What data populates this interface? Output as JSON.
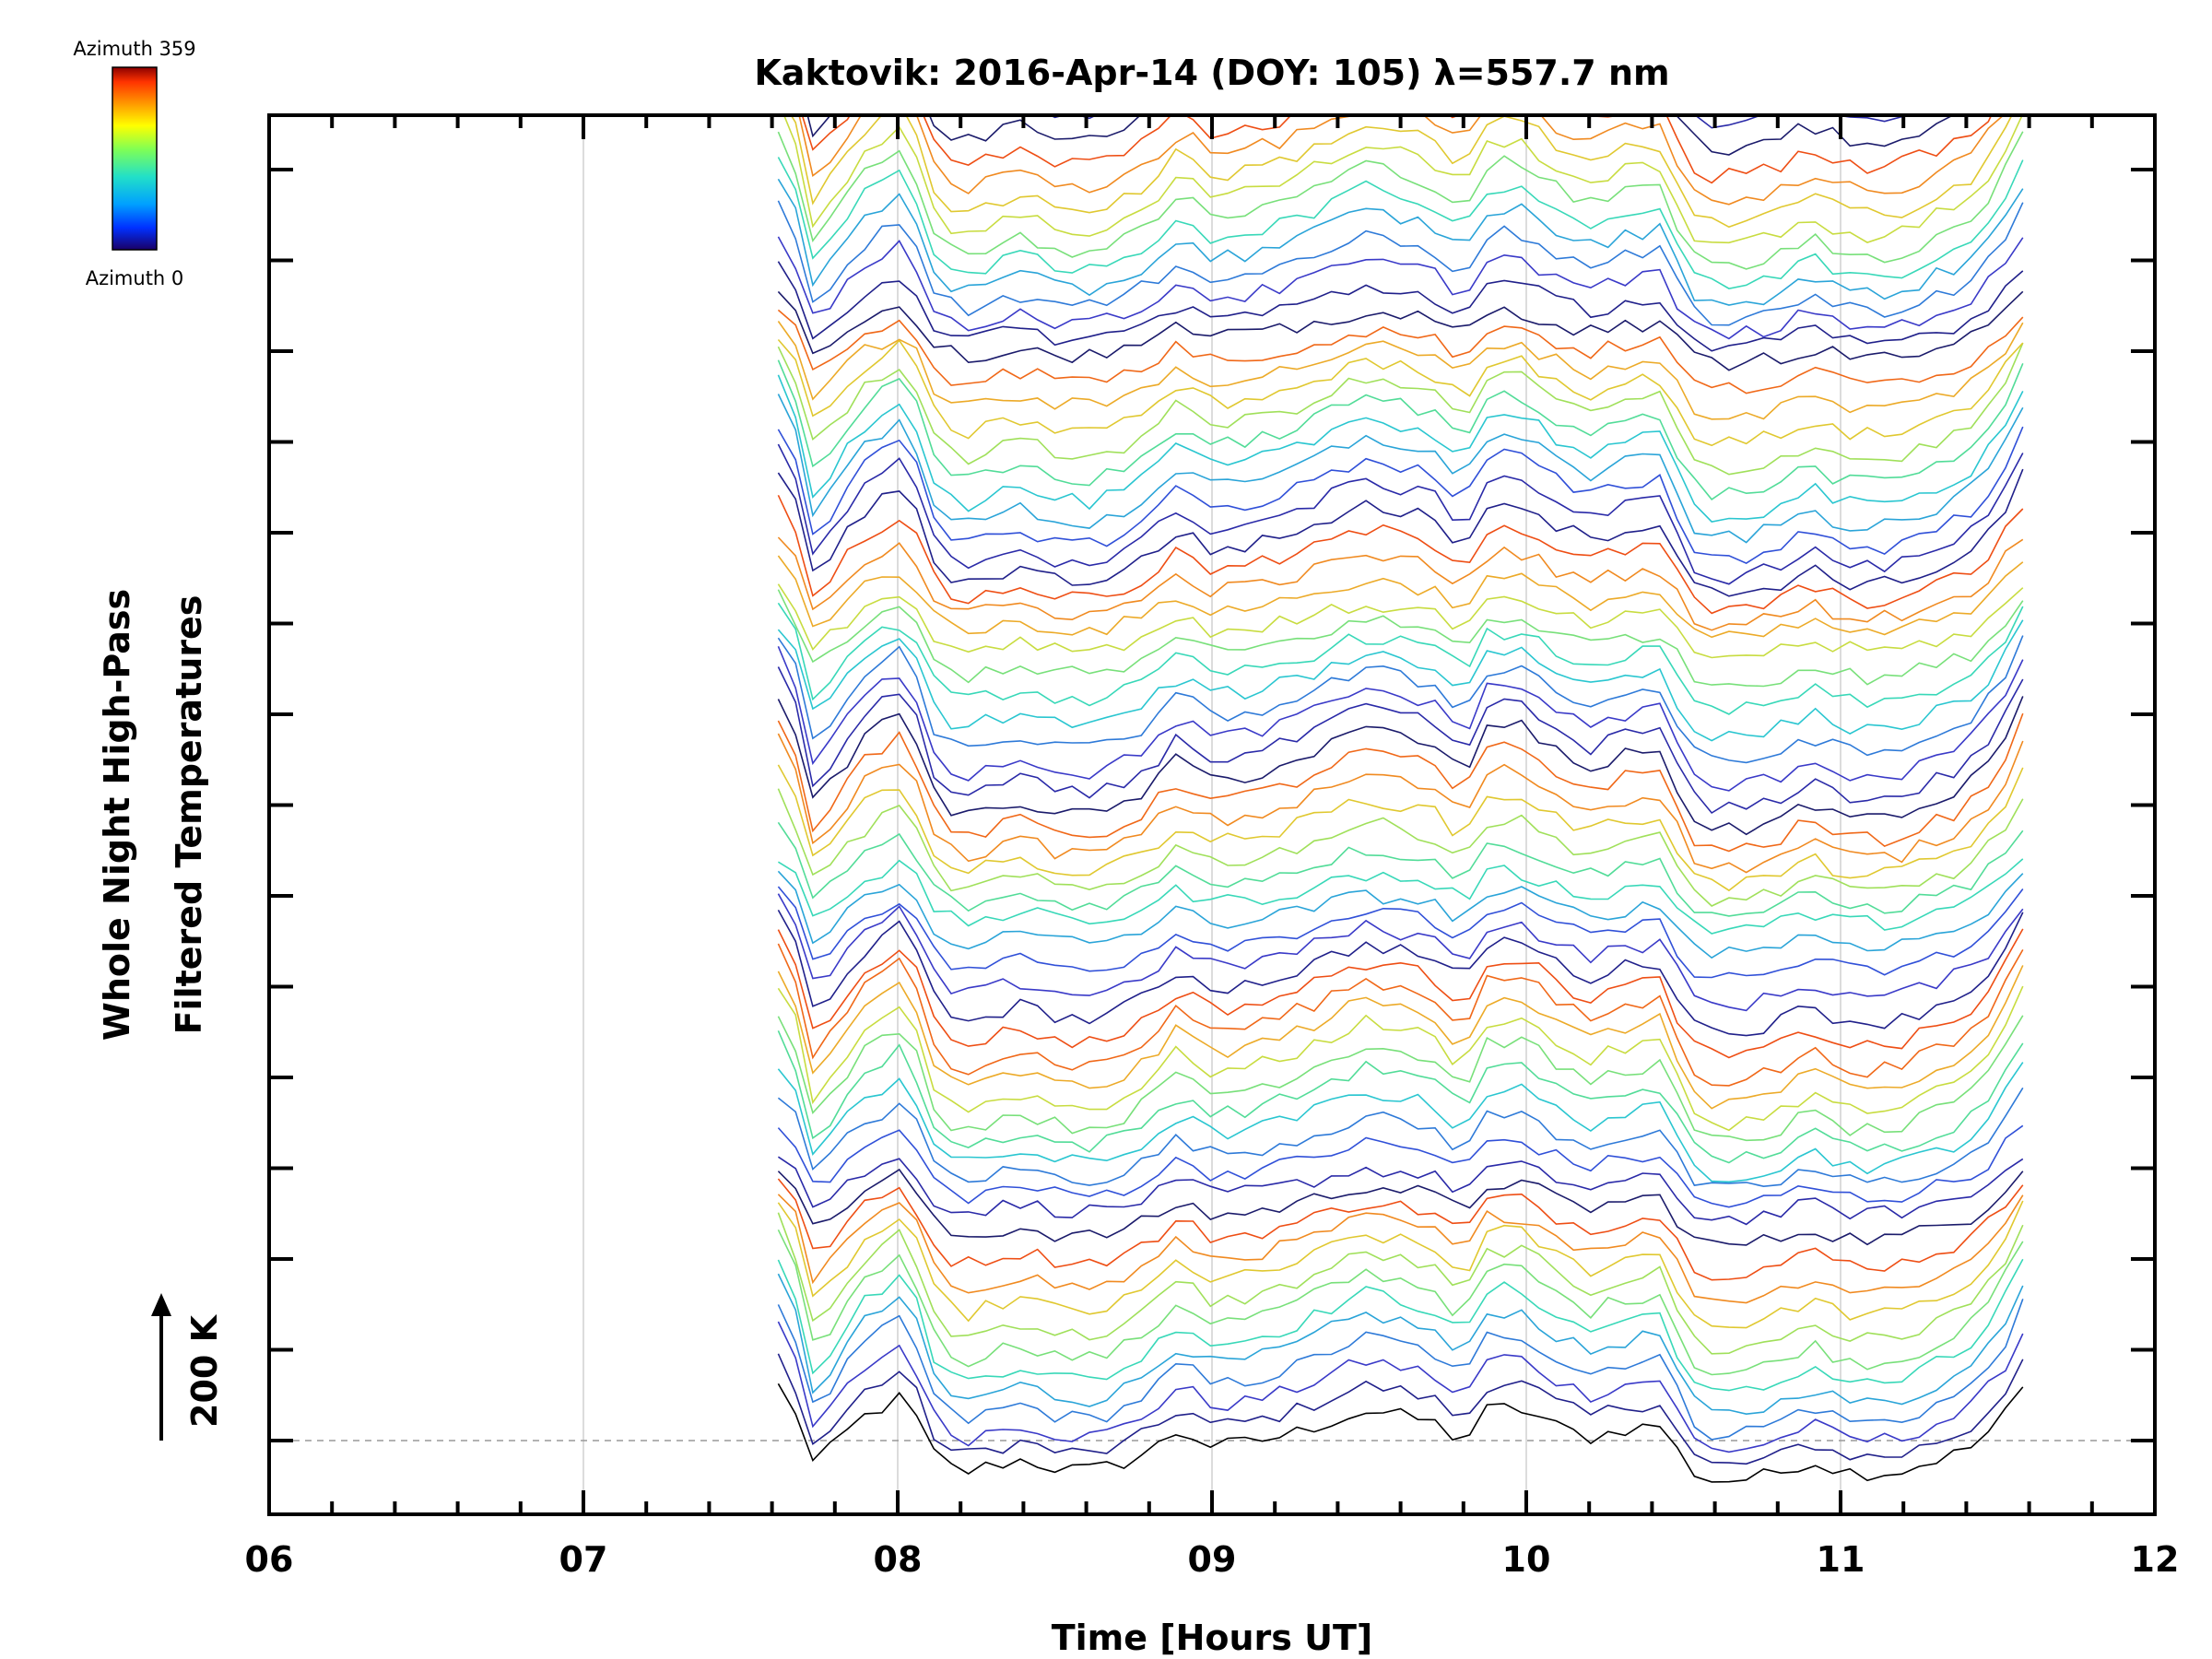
{
  "chart_data": {
    "type": "line",
    "title": "Kaktovik: 2016-Apr-14 (DOY: 105) λ=557.7 nm",
    "xlabel": "Time [Hours UT]",
    "ylabel_line1": "Whole Night High-Pass",
    "ylabel_line2": "Filtered Temperatures",
    "scale_label": "200 K",
    "xlim": [
      6,
      12
    ],
    "x_ticks": [
      "06",
      "07",
      "08",
      "09",
      "10",
      "11",
      "12"
    ],
    "colorbar": {
      "top_label": "Azimuth  359",
      "bottom_label": "Azimuth  0",
      "colors": [
        "#8b0000",
        "#ff3300",
        "#ff9900",
        "#ffff00",
        "#7fff55",
        "#22e0c8",
        "#00a0ff",
        "#0030ff",
        "#1a0066"
      ]
    },
    "line_colors": [
      "#1b1b6b",
      "#20208a",
      "#2a2aa8",
      "#3a3ac8",
      "#3050d8",
      "#2e7ad8",
      "#2aa4d8",
      "#2ac6d0",
      "#38d8b8",
      "#52dc98",
      "#78e07a",
      "#a0e05a",
      "#c8dc40",
      "#e0c830",
      "#ecaa28",
      "#f08a20",
      "#f06818",
      "#ee4e14"
    ],
    "series_info": {
      "count": 150,
      "x_start": 7.62,
      "x_end": 11.58,
      "offset_K": 30
    },
    "profile_x": [
      7.62,
      7.68,
      7.73,
      7.78,
      7.88,
      7.95,
      8.0,
      8.06,
      8.12,
      8.2,
      8.3,
      8.4,
      8.5,
      8.6,
      8.7,
      8.8,
      8.9,
      9.0,
      9.1,
      9.2,
      9.3,
      9.4,
      9.5,
      9.6,
      9.7,
      9.8,
      9.87,
      9.95,
      10.0,
      10.1,
      10.2,
      10.3,
      10.45,
      10.5,
      10.6,
      10.7,
      10.8,
      10.9,
      11.0,
      11.1,
      11.2,
      11.3,
      11.4,
      11.5,
      11.58
    ],
    "profile_K": [
      190,
      140,
      50,
      70,
      130,
      150,
      170,
      130,
      60,
      30,
      45,
      55,
      40,
      35,
      45,
      70,
      110,
      80,
      85,
      95,
      110,
      130,
      145,
      135,
      125,
      85,
      145,
      150,
      145,
      115,
      95,
      110,
      120,
      40,
      15,
      20,
      30,
      55,
      35,
      30,
      35,
      55,
      70,
      120,
      185
    ]
  }
}
